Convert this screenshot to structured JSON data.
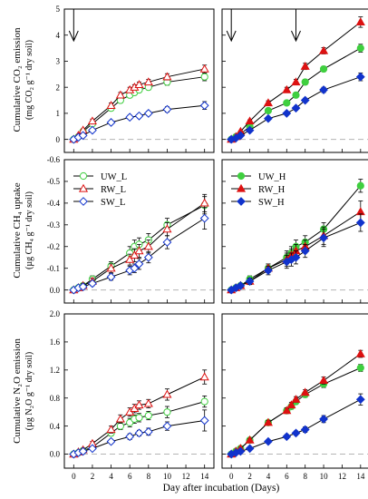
{
  "figure": {
    "shared_xlabel": "Day after incubation (Days)"
  },
  "colors": {
    "green": "#3fcf3f",
    "red": "#dd1111",
    "blue": "#1133cc",
    "dash": "#b4b4b4"
  },
  "chart_data": [
    {
      "type": "line",
      "panel": "CO2-low",
      "ylabel_lines": [
        "Cumulative CO₂ emission",
        "(mg CO₂ g⁻¹ dry soil)"
      ],
      "xlim": [
        -1,
        15
      ],
      "ylim": [
        -0.5,
        5
      ],
      "xticks": [
        0,
        2,
        4,
        6,
        8,
        10,
        12,
        14
      ],
      "yticks": [
        0,
        1,
        2,
        3,
        4,
        5
      ],
      "ytick_labels": [
        "0",
        "1",
        "2",
        "3",
        "4",
        "5"
      ],
      "arrows_at_day": [
        0
      ],
      "legend": false,
      "series": [
        {
          "name": "UW_L",
          "style": "green-circle-open",
          "x": [
            0,
            0.5,
            1,
            2,
            4,
            5,
            6,
            6.5,
            7,
            8,
            10,
            14
          ],
          "y": [
            0,
            0.1,
            0.3,
            0.6,
            1.2,
            1.5,
            1.7,
            1.8,
            1.9,
            2.0,
            2.2,
            2.4
          ],
          "err": [
            0,
            0.03,
            0.05,
            0.08,
            0.1,
            0.1,
            0.1,
            0.1,
            0.1,
            0.1,
            0.12,
            0.15
          ]
        },
        {
          "name": "RW_L",
          "style": "red-triangle-open",
          "x": [
            0,
            0.5,
            1,
            2,
            4,
            5,
            6,
            6.5,
            7,
            8,
            10,
            14
          ],
          "y": [
            0,
            0.15,
            0.35,
            0.7,
            1.3,
            1.7,
            1.9,
            2.0,
            2.1,
            2.2,
            2.4,
            2.7
          ],
          "err": [
            0,
            0.03,
            0.05,
            0.08,
            0.1,
            0.1,
            0.1,
            0.1,
            0.1,
            0.1,
            0.12,
            0.15
          ]
        },
        {
          "name": "SW_L",
          "style": "blue-diamond-open",
          "x": [
            0,
            0.5,
            1,
            2,
            4,
            6,
            7,
            8,
            10,
            14
          ],
          "y": [
            0,
            0.08,
            0.15,
            0.35,
            0.65,
            0.85,
            0.9,
            1.0,
            1.15,
            1.3
          ],
          "err": [
            0,
            0.02,
            0.03,
            0.05,
            0.07,
            0.08,
            0.08,
            0.08,
            0.1,
            0.15
          ]
        }
      ]
    },
    {
      "type": "line",
      "panel": "CO2-high",
      "ylabel_lines": [],
      "xlim": [
        -1,
        15
      ],
      "ylim": [
        -0.5,
        5
      ],
      "xticks": [
        0,
        2,
        4,
        6,
        8,
        10,
        12,
        14
      ],
      "yticks": [
        0,
        1,
        2,
        3,
        4,
        5
      ],
      "ytick_labels": [],
      "arrows_at_day": [
        0,
        7
      ],
      "legend": false,
      "series": [
        {
          "name": "UW_H",
          "style": "green-circle-filled",
          "x": [
            0,
            0.5,
            1,
            2,
            4,
            6,
            7,
            8,
            10,
            14
          ],
          "y": [
            0,
            0.1,
            0.2,
            0.5,
            1.1,
            1.4,
            1.7,
            2.2,
            2.7,
            3.5
          ],
          "err": [
            0,
            0.02,
            0.03,
            0.05,
            0.08,
            0.08,
            0.1,
            0.1,
            0.1,
            0.15
          ]
        },
        {
          "name": "RW_H",
          "style": "red-triangle-filled",
          "x": [
            0,
            0.5,
            1,
            2,
            4,
            6,
            7,
            8,
            10,
            14
          ],
          "y": [
            0,
            0.1,
            0.3,
            0.7,
            1.4,
            1.9,
            2.2,
            2.8,
            3.4,
            4.5
          ],
          "err": [
            0,
            0.02,
            0.03,
            0.05,
            0.08,
            0.1,
            0.1,
            0.12,
            0.12,
            0.2
          ]
        },
        {
          "name": "SW_H",
          "style": "blue-diamond-filled",
          "x": [
            0,
            0.5,
            1,
            2,
            4,
            6,
            7,
            8,
            10,
            14
          ],
          "y": [
            0,
            0.05,
            0.15,
            0.35,
            0.8,
            1.0,
            1.2,
            1.5,
            1.9,
            2.4
          ],
          "err": [
            0,
            0.02,
            0.03,
            0.04,
            0.06,
            0.07,
            0.08,
            0.08,
            0.1,
            0.15
          ]
        }
      ]
    },
    {
      "type": "line",
      "panel": "CH4-low",
      "ylabel_lines": [
        "Cumulative CH₄ uptake",
        "(µg CH₄ g⁻¹ dry soil)"
      ],
      "xlim": [
        -1,
        15
      ],
      "ylim": [
        0.06,
        -0.6
      ],
      "xticks": [
        0,
        2,
        4,
        6,
        8,
        10,
        12,
        14
      ],
      "yticks": [
        0,
        -0.1,
        -0.2,
        -0.3,
        -0.4,
        -0.5,
        -0.6
      ],
      "ytick_labels": [
        "0.0",
        "-0.1",
        "-0.2",
        "-0.3",
        "-0.4",
        "-0.5",
        "-0.6"
      ],
      "arrows_at_day": [],
      "legend": true,
      "series": [
        {
          "name": "UW_L",
          "style": "green-circle-open",
          "x": [
            0,
            0.5,
            1,
            2,
            4,
            6,
            6.5,
            7,
            8,
            10,
            14
          ],
          "y": [
            0,
            -0.01,
            -0.02,
            -0.05,
            -0.11,
            -0.17,
            -0.2,
            -0.21,
            -0.23,
            -0.3,
            -0.39
          ],
          "err": [
            0,
            0.005,
            0.01,
            0.015,
            0.02,
            0.03,
            0.03,
            0.03,
            0.03,
            0.03,
            0.04
          ]
        },
        {
          "name": "RW_L",
          "style": "red-triangle-open",
          "x": [
            0,
            0.5,
            1,
            2,
            4,
            6,
            6.5,
            7,
            8,
            10,
            14
          ],
          "y": [
            0,
            -0.01,
            -0.02,
            -0.04,
            -0.1,
            -0.14,
            -0.16,
            -0.18,
            -0.2,
            -0.28,
            -0.4
          ],
          "err": [
            0,
            0.005,
            0.01,
            0.015,
            0.02,
            0.025,
            0.03,
            0.03,
            0.03,
            0.03,
            0.04
          ]
        },
        {
          "name": "SW_L",
          "style": "blue-diamond-open",
          "x": [
            0,
            0.5,
            1,
            2,
            4,
            6,
            6.5,
            7,
            8,
            10,
            14
          ],
          "y": [
            0,
            -0.01,
            -0.015,
            -0.03,
            -0.06,
            -0.09,
            -0.1,
            -0.12,
            -0.15,
            -0.22,
            -0.33
          ],
          "err": [
            0,
            0.005,
            0.01,
            0.01,
            0.015,
            0.02,
            0.02,
            0.025,
            0.025,
            0.03,
            0.05
          ]
        }
      ]
    },
    {
      "type": "line",
      "panel": "CH4-high",
      "ylabel_lines": [],
      "xlim": [
        -1,
        15
      ],
      "ylim": [
        0.06,
        -0.6
      ],
      "xticks": [
        0,
        2,
        4,
        6,
        8,
        10,
        12,
        14
      ],
      "yticks": [
        0,
        -0.1,
        -0.2,
        -0.3,
        -0.4,
        -0.5,
        -0.6
      ],
      "ytick_labels": [],
      "arrows_at_day": [],
      "legend": true,
      "series": [
        {
          "name": "UW_H",
          "style": "green-circle-filled",
          "x": [
            0,
            0.5,
            1,
            2,
            4,
            6,
            6.5,
            7,
            8,
            10,
            14
          ],
          "y": [
            0,
            -0.01,
            -0.02,
            -0.05,
            -0.1,
            -0.15,
            -0.17,
            -0.2,
            -0.22,
            -0.28,
            -0.48
          ],
          "err": [
            0,
            0.005,
            0.01,
            0.015,
            0.02,
            0.03,
            0.03,
            0.03,
            0.03,
            0.03,
            0.03
          ]
        },
        {
          "name": "RW_H",
          "style": "red-triangle-filled",
          "x": [
            0,
            0.5,
            1,
            2,
            4,
            6,
            6.5,
            7,
            8,
            10,
            14
          ],
          "y": [
            0,
            -0.01,
            -0.02,
            -0.04,
            -0.1,
            -0.14,
            -0.16,
            -0.18,
            -0.2,
            -0.25,
            -0.36
          ],
          "err": [
            0,
            0.005,
            0.01,
            0.015,
            0.02,
            0.03,
            0.03,
            0.03,
            0.03,
            0.04,
            0.05
          ]
        },
        {
          "name": "SW_H",
          "style": "blue-diamond-filled",
          "x": [
            0,
            0.5,
            1,
            2,
            4,
            6,
            6.5,
            7,
            8,
            10,
            14
          ],
          "y": [
            0,
            -0.01,
            -0.02,
            -0.04,
            -0.09,
            -0.13,
            -0.14,
            -0.15,
            -0.18,
            -0.24,
            -0.31
          ],
          "err": [
            0,
            0.005,
            0.01,
            0.015,
            0.02,
            0.03,
            0.03,
            0.03,
            0.03,
            0.04,
            0.04
          ]
        }
      ]
    },
    {
      "type": "line",
      "panel": "N2O-low",
      "ylabel_lines": [
        "Cumulative N₂O emission",
        "(µg N₂O g⁻¹ dry soil)"
      ],
      "xlim": [
        -1,
        15
      ],
      "ylim": [
        -0.2,
        2.0
      ],
      "xticks": [
        0,
        2,
        4,
        6,
        8,
        10,
        12,
        14
      ],
      "yticks": [
        0,
        0.4,
        0.8,
        1.2,
        1.6,
        2.0
      ],
      "ytick_labels": [
        "0.0",
        "0.4",
        "0.8",
        "1.2",
        "1.6",
        "2.0"
      ],
      "xtick_labels": [
        "0",
        "2",
        "4",
        "6",
        "8",
        "10",
        "12",
        "14"
      ],
      "arrows_at_day": [],
      "legend": false,
      "series": [
        {
          "name": "UW_L",
          "style": "green-circle-open",
          "x": [
            0,
            0.5,
            1,
            2,
            4,
            5,
            6,
            6.5,
            7,
            8,
            10,
            14
          ],
          "y": [
            0,
            0.02,
            0.05,
            0.1,
            0.3,
            0.4,
            0.45,
            0.5,
            0.52,
            0.55,
            0.6,
            0.75
          ],
          "err": [
            0,
            0.01,
            0.02,
            0.03,
            0.04,
            0.05,
            0.06,
            0.06,
            0.06,
            0.06,
            0.08,
            0.08
          ]
        },
        {
          "name": "RW_L",
          "style": "red-triangle-open",
          "x": [
            0,
            0.5,
            1,
            2,
            4,
            5,
            6,
            6.5,
            7,
            8,
            10,
            14
          ],
          "y": [
            0,
            0.03,
            0.06,
            0.15,
            0.35,
            0.5,
            0.6,
            0.65,
            0.7,
            0.72,
            0.85,
            1.1
          ],
          "err": [
            0,
            0.01,
            0.02,
            0.03,
            0.05,
            0.06,
            0.06,
            0.06,
            0.06,
            0.06,
            0.08,
            0.1
          ]
        },
        {
          "name": "SW_L",
          "style": "blue-diamond-open",
          "x": [
            0,
            0.5,
            1,
            2,
            4,
            6,
            7,
            8,
            10,
            14
          ],
          "y": [
            0,
            0.02,
            0.04,
            0.08,
            0.18,
            0.25,
            0.3,
            0.32,
            0.4,
            0.48
          ],
          "err": [
            0,
            0.01,
            0.015,
            0.02,
            0.03,
            0.04,
            0.04,
            0.05,
            0.06,
            0.15
          ]
        }
      ]
    },
    {
      "type": "line",
      "panel": "N2O-high",
      "ylabel_lines": [],
      "xlim": [
        -1,
        15
      ],
      "ylim": [
        -0.2,
        2.0
      ],
      "xticks": [
        0,
        2,
        4,
        6,
        8,
        10,
        12,
        14
      ],
      "yticks": [
        0,
        0.4,
        0.8,
        1.2,
        1.6,
        2.0
      ],
      "ytick_labels": [],
      "xtick_labels": [
        "0",
        "2",
        "4",
        "6",
        "8",
        "10",
        "12",
        "14"
      ],
      "arrows_at_day": [],
      "legend": false,
      "series": [
        {
          "name": "UW_H",
          "style": "green-circle-filled",
          "x": [
            0,
            0.5,
            1,
            2,
            4,
            6,
            6.5,
            7,
            8,
            10,
            14
          ],
          "y": [
            0,
            0.04,
            0.08,
            0.2,
            0.45,
            0.62,
            0.68,
            0.75,
            0.85,
            1.0,
            1.23
          ],
          "err": [
            0,
            0.01,
            0.02,
            0.02,
            0.03,
            0.04,
            0.04,
            0.04,
            0.04,
            0.05,
            0.05
          ]
        },
        {
          "name": "RW_H",
          "style": "red-triangle-filled",
          "x": [
            0,
            0.5,
            1,
            2,
            4,
            6,
            6.5,
            7,
            8,
            10,
            14
          ],
          "y": [
            0,
            0.04,
            0.08,
            0.2,
            0.45,
            0.62,
            0.7,
            0.78,
            0.88,
            1.05,
            1.43
          ],
          "err": [
            0,
            0.01,
            0.02,
            0.02,
            0.03,
            0.04,
            0.04,
            0.04,
            0.04,
            0.05,
            0.05
          ]
        },
        {
          "name": "SW_H",
          "style": "blue-diamond-filled",
          "x": [
            0,
            0.5,
            1,
            2,
            4,
            6,
            7,
            8,
            10,
            14
          ],
          "y": [
            0,
            0.02,
            0.04,
            0.08,
            0.18,
            0.25,
            0.3,
            0.35,
            0.5,
            0.78
          ],
          "err": [
            0,
            0.01,
            0.01,
            0.02,
            0.02,
            0.03,
            0.03,
            0.04,
            0.05,
            0.08
          ]
        }
      ]
    }
  ]
}
